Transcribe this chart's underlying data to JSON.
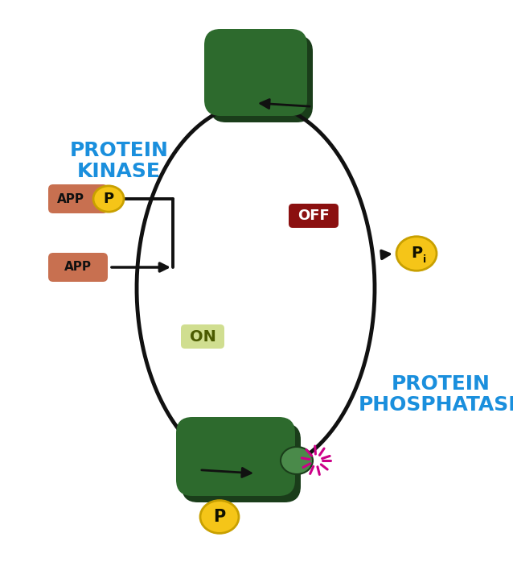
{
  "bg_color": "#ffffff",
  "dark_green": "#2d6a2d",
  "shadow_green": "#1a3d1a",
  "medium_green": "#4a8a4a",
  "light_green_bg": "#d0de90",
  "salmon": "#c87050",
  "yellow": "#f5c518",
  "yellow_edge": "#c8a000",
  "red_dark": "#8b1010",
  "blue_text": "#1a8fdd",
  "arrow_color": "#111111",
  "magenta": "#cc0088",
  "protein_kinase": "PROTEIN\nKINASE",
  "protein_phosphatase": "PROTEIN\nPHOSPHATASE",
  "on_label": "ON",
  "off_label": "OFF",
  "app_label": "APP",
  "p_label": "P",
  "pi_sub": "i",
  "figw": 6.38,
  "figh": 7.08,
  "dpi": 100
}
